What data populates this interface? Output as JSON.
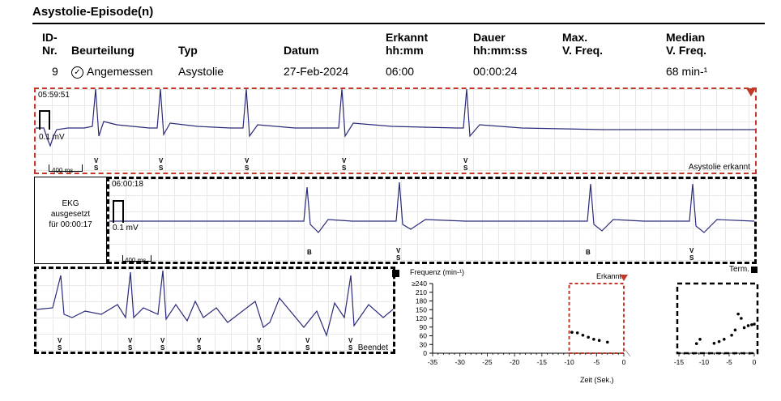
{
  "page": {
    "title": "Asystolie-Episode(n)"
  },
  "table": {
    "headers": {
      "id_1": "ID-",
      "id_2": "Nr.",
      "rating": "Beurteilung",
      "type": "Typ",
      "date": "Datum",
      "detected_1": "Erkannt",
      "detected_2": "hh:mm",
      "duration_1": "Dauer",
      "duration_2": "hh:mm:ss",
      "max_1": "Max.",
      "max_2": "V. Freq.",
      "median_1": "Median",
      "median_2": "V. Freq."
    },
    "row": {
      "id": "9",
      "rating": "Angemessen",
      "type": "Asystolie",
      "date": "27-Feb-2024",
      "detected": "06:00",
      "duration": "00:00:24",
      "max": "",
      "median": "68 min-¹"
    }
  },
  "strip1": {
    "time": "05:59:51",
    "cal": "0.1 mV",
    "scale": "400 ms",
    "event_label": "Asystolie erkannt",
    "marker_top": "V",
    "marker_bottom": "S"
  },
  "strip2": {
    "side_label_1": "EKG",
    "side_label_2": "ausgesetzt",
    "side_label_3": "für 00:00:17",
    "time": "06:00:18",
    "cal": "0.1 mV",
    "scale": "400 ms",
    "marker_b": "B",
    "marker_top": "V",
    "marker_bottom": "S",
    "term_label": "Term."
  },
  "strip3": {
    "end_label": "Beendet",
    "marker_top": "V",
    "marker_bottom": "S"
  },
  "chart_data": {
    "type": "scatter",
    "ylabel": "Frequenz (min-¹)",
    "xlabel": "Zeit (Sek.)",
    "annotation": "Erkannt",
    "y_ticks": [
      "≥240",
      "210",
      "180",
      "150",
      "120",
      "90",
      "60",
      "30",
      "0"
    ],
    "ylim": [
      0,
      240
    ],
    "panels": [
      {
        "xlim": [
          -35,
          0
        ],
        "x_ticks": [
          "-35",
          "-30",
          "-25",
          "-20",
          "-15",
          "-10",
          "-5",
          "0"
        ],
        "points": [
          [
            -9.5,
            72
          ],
          [
            -8.5,
            70
          ],
          [
            -7.5,
            62
          ],
          [
            -6.5,
            55
          ],
          [
            -5.5,
            48
          ],
          [
            -4.5,
            44
          ],
          [
            -3,
            38
          ]
        ]
      },
      {
        "xlim": [
          -15,
          0
        ],
        "x_ticks": [
          "-15",
          "-10",
          "-5",
          "0"
        ],
        "points": [
          [
            -11.5,
            33
          ],
          [
            -10.8,
            48
          ],
          [
            -8,
            34
          ],
          [
            -7,
            40
          ],
          [
            -6,
            48
          ],
          [
            -4.5,
            62
          ],
          [
            -3.8,
            80
          ],
          [
            -3.2,
            135
          ],
          [
            -2.6,
            120
          ],
          [
            -2,
            88
          ],
          [
            -1.2,
            95
          ],
          [
            -0.5,
            98
          ],
          [
            0,
            100
          ]
        ]
      }
    ]
  }
}
